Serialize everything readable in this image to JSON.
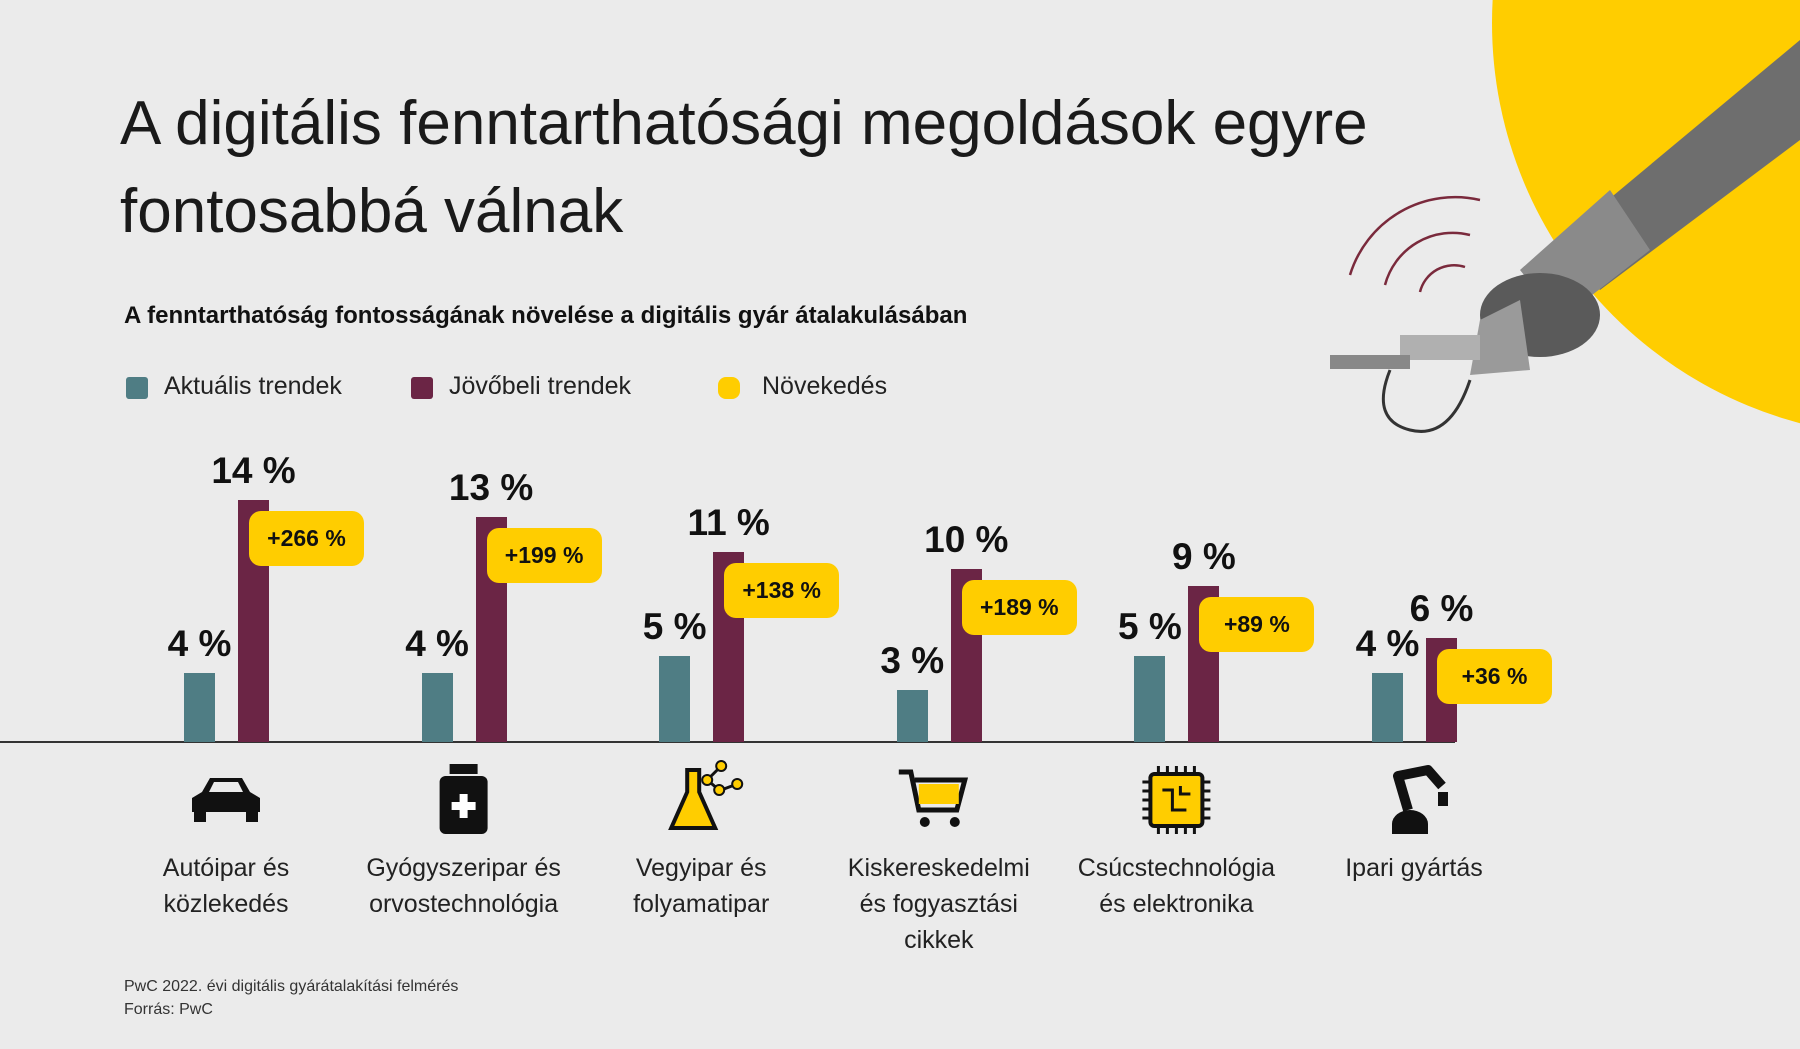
{
  "chart_data": {
    "type": "bar",
    "title": "A digitális fenntarthatósági megoldások egyre fontosabbá válnak",
    "subtitle": "A fenntarthatóság fontosságának növelése a digitális gyár átalakulásában",
    "categories": [
      "Autóipar és közlekedés",
      "Gyógyszeripar és orvostechnológia",
      "Vegyipar és folyamatipar",
      "Kiskereskedelmi és fogyasztási cikkek",
      "Csúcstechnológia és elektronika",
      "Ipari gyártás"
    ],
    "series": [
      {
        "name": "Aktuális trendek",
        "color": "#4f7d84",
        "values": [
          4,
          4,
          5,
          3,
          5,
          4
        ],
        "value_labels": [
          "4 %",
          "4 %",
          "5 %",
          "3 %",
          "5 %",
          "4 %"
        ]
      },
      {
        "name": "Jövőbeli trendek",
        "color": "#6b2545",
        "values": [
          14,
          13,
          11,
          10,
          9,
          6
        ],
        "value_labels": [
          "14 %",
          "13 %",
          "11 %",
          "10 %",
          "9 %",
          "6 %"
        ]
      }
    ],
    "growth": {
      "name": "Növekedés",
      "color": "#ffcd00",
      "values": [
        266,
        199,
        138,
        189,
        89,
        36
      ],
      "value_labels": [
        "+266 %",
        "+199 %",
        "+138 %",
        "+189 %",
        "+89 %",
        "+36 %"
      ]
    },
    "ylim": [
      0,
      14
    ],
    "notes": [
      "PwC 2022. évi digitális gyárátalakítási felmérés",
      "Forrás: PwC"
    ]
  }
}
